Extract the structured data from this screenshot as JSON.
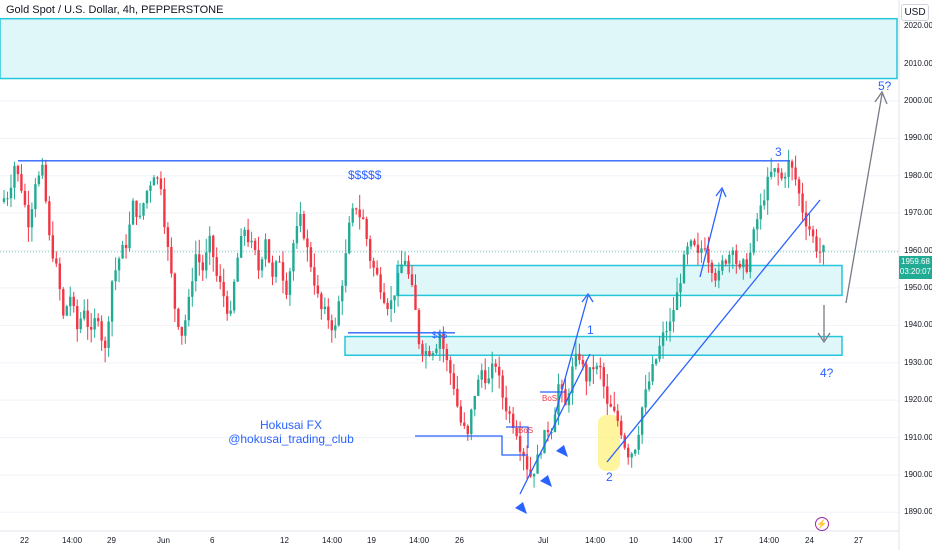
{
  "header": {
    "title": "Gold Spot / U.S. Dollar, 4h, PEPPERSTONE",
    "currency": "USD"
  },
  "price_tag": {
    "price": "1959.68",
    "countdown": "03:20:07"
  },
  "watermark": {
    "line1": "Hokusai FX",
    "line2": "@hokusai_trading_club"
  },
  "annotations": {
    "liq_top": "$$$$$",
    "liq_mid": "$$$",
    "bos1": "BoS",
    "bos2": "BoS",
    "wave1": "1",
    "wave2": "2",
    "wave3": "3",
    "wave4": "4?",
    "wave5": "5?"
  },
  "icons": {
    "alert": "lightning-icon"
  },
  "colors": {
    "up": "#22ab94",
    "down": "#f23645",
    "zone_fill": "#e0f7fa",
    "zone_border": "#26c6da",
    "drawing": "#2962ff",
    "projection": "#787b86",
    "highlight": "#fff176"
  },
  "chart_data": {
    "type": "candlestick",
    "symbol": "XAUUSD",
    "timeframe": "4h",
    "ylim": [
      1885,
      2027
    ],
    "y_ticks": [
      1890,
      1900,
      1910,
      1920,
      1930,
      1940,
      1950,
      1960,
      1970,
      1980,
      1990,
      2000,
      2010,
      2020
    ],
    "x_ticks": [
      "22",
      "14:00",
      "29",
      "Jun",
      "6",
      "12",
      "14:00",
      "19",
      "14:00",
      "26",
      "Jul",
      "14:00",
      "10",
      "14:00",
      "17",
      "14:00",
      "24",
      "27"
    ],
    "close_path": [
      1975,
      1983,
      1977,
      1968,
      1979,
      1981,
      1963,
      1955,
      1942,
      1948,
      1939,
      1945,
      1937,
      1943,
      1933,
      1952,
      1958,
      1962,
      1972,
      1968,
      1976,
      1981,
      1978,
      1960,
      1945,
      1938,
      1946,
      1959,
      1955,
      1962,
      1953,
      1948,
      1942,
      1958,
      1966,
      1961,
      1955,
      1964,
      1952,
      1958,
      1950,
      1962,
      1968,
      1960,
      1952,
      1944,
      1942,
      1939,
      1952,
      1966,
      1972,
      1968,
      1958,
      1953,
      1948,
      1946,
      1952,
      1958,
      1949,
      1936,
      1933,
      1934,
      1938,
      1930,
      1924,
      1914,
      1910,
      1922,
      1928,
      1925,
      1930,
      1921,
      1916,
      1912,
      1906,
      1900,
      1904,
      1910,
      1913,
      1924,
      1918,
      1928,
      1932,
      1926,
      1929,
      1928,
      1918,
      1916,
      1912,
      1906,
      1908,
      1918,
      1925,
      1931,
      1937,
      1940,
      1948,
      1957,
      1961,
      1958,
      1962,
      1956,
      1953,
      1958,
      1962,
      1954,
      1956,
      1964,
      1971,
      1978,
      1981,
      1979,
      1983,
      1979,
      1971,
      1966,
      1961,
      1959.68
    ],
    "zones": [
      {
        "low": 2006,
        "high": 2022
      },
      {
        "low": 1948,
        "high": 1956
      },
      {
        "low": 1932,
        "high": 1937
      }
    ],
    "levels": [
      {
        "name": "$$$$$",
        "value": 1984
      },
      {
        "name": "$$$",
        "value": 1938
      }
    ],
    "current_price": 1959.68
  }
}
